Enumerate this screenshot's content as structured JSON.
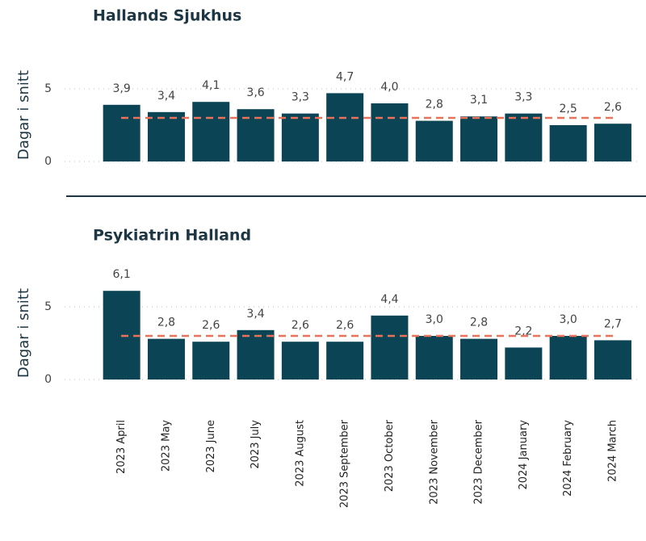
{
  "chart_data": [
    {
      "type": "bar",
      "title": "Hallands Sjukhus",
      "y_label": "Dagar i snitt",
      "values": [
        3.9,
        3.4,
        4.1,
        3.6,
        3.3,
        4.7,
        4.0,
        2.8,
        3.1,
        3.3,
        2.5,
        2.6
      ],
      "value_labels": [
        "3,9",
        "3,4",
        "4,1",
        "3,6",
        "3,3",
        "4,7",
        "4,0",
        "2,8",
        "3,1",
        "3,3",
        "2,5",
        "2,6"
      ],
      "color": "#0b4555",
      "ylim": [
        0,
        7.5
      ],
      "yticks": [
        0,
        5
      ],
      "grid": true,
      "reference_line": 3.0,
      "reference_color": "#e8735a"
    },
    {
      "type": "bar",
      "title": "Psykiatrin Halland",
      "y_label": "Dagar i snitt",
      "categories": [
        "2023 April",
        "2023 May",
        "2023 June",
        "2023 July",
        "2023 August",
        "2023 September",
        "2023 October",
        "2023 November",
        "2023 December",
        "2024 January",
        "2024 February",
        "2024 March"
      ],
      "values": [
        6.1,
        2.8,
        2.6,
        3.4,
        2.6,
        2.6,
        4.4,
        3.0,
        2.8,
        2.2,
        3.0,
        2.7
      ],
      "value_labels": [
        "6,1",
        "2,8",
        "2,6",
        "3,4",
        "2,6",
        "2,6",
        "4,4",
        "3,0",
        "2,8",
        "2,2",
        "3,0",
        "2,7"
      ],
      "color": "#0b4555",
      "ylim": [
        0,
        7.5
      ],
      "yticks": [
        0,
        5
      ],
      "grid": true,
      "reference_line": 3.0,
      "reference_color": "#e8735a"
    }
  ]
}
